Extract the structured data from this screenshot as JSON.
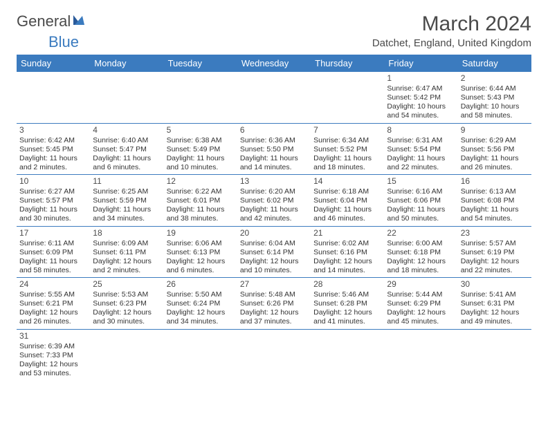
{
  "brand": {
    "text_main": "General",
    "text_accent": "Blue"
  },
  "title": "March 2024",
  "location": "Datchet, England, United Kingdom",
  "colors": {
    "header_bg": "#3b7bbf",
    "header_text": "#ffffff",
    "cell_border": "#3b7bbf",
    "text": "#333333",
    "title_text": "#4a4a4a"
  },
  "day_headers": [
    "Sunday",
    "Monday",
    "Tuesday",
    "Wednesday",
    "Thursday",
    "Friday",
    "Saturday"
  ],
  "weeks": [
    [
      null,
      null,
      null,
      null,
      null,
      {
        "n": "1",
        "sr": "Sunrise: 6:47 AM",
        "ss": "Sunset: 5:42 PM",
        "d1": "Daylight: 10 hours",
        "d2": "and 54 minutes."
      },
      {
        "n": "2",
        "sr": "Sunrise: 6:44 AM",
        "ss": "Sunset: 5:43 PM",
        "d1": "Daylight: 10 hours",
        "d2": "and 58 minutes."
      }
    ],
    [
      {
        "n": "3",
        "sr": "Sunrise: 6:42 AM",
        "ss": "Sunset: 5:45 PM",
        "d1": "Daylight: 11 hours",
        "d2": "and 2 minutes."
      },
      {
        "n": "4",
        "sr": "Sunrise: 6:40 AM",
        "ss": "Sunset: 5:47 PM",
        "d1": "Daylight: 11 hours",
        "d2": "and 6 minutes."
      },
      {
        "n": "5",
        "sr": "Sunrise: 6:38 AM",
        "ss": "Sunset: 5:49 PM",
        "d1": "Daylight: 11 hours",
        "d2": "and 10 minutes."
      },
      {
        "n": "6",
        "sr": "Sunrise: 6:36 AM",
        "ss": "Sunset: 5:50 PM",
        "d1": "Daylight: 11 hours",
        "d2": "and 14 minutes."
      },
      {
        "n": "7",
        "sr": "Sunrise: 6:34 AM",
        "ss": "Sunset: 5:52 PM",
        "d1": "Daylight: 11 hours",
        "d2": "and 18 minutes."
      },
      {
        "n": "8",
        "sr": "Sunrise: 6:31 AM",
        "ss": "Sunset: 5:54 PM",
        "d1": "Daylight: 11 hours",
        "d2": "and 22 minutes."
      },
      {
        "n": "9",
        "sr": "Sunrise: 6:29 AM",
        "ss": "Sunset: 5:56 PM",
        "d1": "Daylight: 11 hours",
        "d2": "and 26 minutes."
      }
    ],
    [
      {
        "n": "10",
        "sr": "Sunrise: 6:27 AM",
        "ss": "Sunset: 5:57 PM",
        "d1": "Daylight: 11 hours",
        "d2": "and 30 minutes."
      },
      {
        "n": "11",
        "sr": "Sunrise: 6:25 AM",
        "ss": "Sunset: 5:59 PM",
        "d1": "Daylight: 11 hours",
        "d2": "and 34 minutes."
      },
      {
        "n": "12",
        "sr": "Sunrise: 6:22 AM",
        "ss": "Sunset: 6:01 PM",
        "d1": "Daylight: 11 hours",
        "d2": "and 38 minutes."
      },
      {
        "n": "13",
        "sr": "Sunrise: 6:20 AM",
        "ss": "Sunset: 6:02 PM",
        "d1": "Daylight: 11 hours",
        "d2": "and 42 minutes."
      },
      {
        "n": "14",
        "sr": "Sunrise: 6:18 AM",
        "ss": "Sunset: 6:04 PM",
        "d1": "Daylight: 11 hours",
        "d2": "and 46 minutes."
      },
      {
        "n": "15",
        "sr": "Sunrise: 6:16 AM",
        "ss": "Sunset: 6:06 PM",
        "d1": "Daylight: 11 hours",
        "d2": "and 50 minutes."
      },
      {
        "n": "16",
        "sr": "Sunrise: 6:13 AM",
        "ss": "Sunset: 6:08 PM",
        "d1": "Daylight: 11 hours",
        "d2": "and 54 minutes."
      }
    ],
    [
      {
        "n": "17",
        "sr": "Sunrise: 6:11 AM",
        "ss": "Sunset: 6:09 PM",
        "d1": "Daylight: 11 hours",
        "d2": "and 58 minutes."
      },
      {
        "n": "18",
        "sr": "Sunrise: 6:09 AM",
        "ss": "Sunset: 6:11 PM",
        "d1": "Daylight: 12 hours",
        "d2": "and 2 minutes."
      },
      {
        "n": "19",
        "sr": "Sunrise: 6:06 AM",
        "ss": "Sunset: 6:13 PM",
        "d1": "Daylight: 12 hours",
        "d2": "and 6 minutes."
      },
      {
        "n": "20",
        "sr": "Sunrise: 6:04 AM",
        "ss": "Sunset: 6:14 PM",
        "d1": "Daylight: 12 hours",
        "d2": "and 10 minutes."
      },
      {
        "n": "21",
        "sr": "Sunrise: 6:02 AM",
        "ss": "Sunset: 6:16 PM",
        "d1": "Daylight: 12 hours",
        "d2": "and 14 minutes."
      },
      {
        "n": "22",
        "sr": "Sunrise: 6:00 AM",
        "ss": "Sunset: 6:18 PM",
        "d1": "Daylight: 12 hours",
        "d2": "and 18 minutes."
      },
      {
        "n": "23",
        "sr": "Sunrise: 5:57 AM",
        "ss": "Sunset: 6:19 PM",
        "d1": "Daylight: 12 hours",
        "d2": "and 22 minutes."
      }
    ],
    [
      {
        "n": "24",
        "sr": "Sunrise: 5:55 AM",
        "ss": "Sunset: 6:21 PM",
        "d1": "Daylight: 12 hours",
        "d2": "and 26 minutes."
      },
      {
        "n": "25",
        "sr": "Sunrise: 5:53 AM",
        "ss": "Sunset: 6:23 PM",
        "d1": "Daylight: 12 hours",
        "d2": "and 30 minutes."
      },
      {
        "n": "26",
        "sr": "Sunrise: 5:50 AM",
        "ss": "Sunset: 6:24 PM",
        "d1": "Daylight: 12 hours",
        "d2": "and 34 minutes."
      },
      {
        "n": "27",
        "sr": "Sunrise: 5:48 AM",
        "ss": "Sunset: 6:26 PM",
        "d1": "Daylight: 12 hours",
        "d2": "and 37 minutes."
      },
      {
        "n": "28",
        "sr": "Sunrise: 5:46 AM",
        "ss": "Sunset: 6:28 PM",
        "d1": "Daylight: 12 hours",
        "d2": "and 41 minutes."
      },
      {
        "n": "29",
        "sr": "Sunrise: 5:44 AM",
        "ss": "Sunset: 6:29 PM",
        "d1": "Daylight: 12 hours",
        "d2": "and 45 minutes."
      },
      {
        "n": "30",
        "sr": "Sunrise: 5:41 AM",
        "ss": "Sunset: 6:31 PM",
        "d1": "Daylight: 12 hours",
        "d2": "and 49 minutes."
      }
    ],
    [
      {
        "n": "31",
        "sr": "Sunrise: 6:39 AM",
        "ss": "Sunset: 7:33 PM",
        "d1": "Daylight: 12 hours",
        "d2": "and 53 minutes."
      },
      null,
      null,
      null,
      null,
      null,
      null
    ]
  ]
}
